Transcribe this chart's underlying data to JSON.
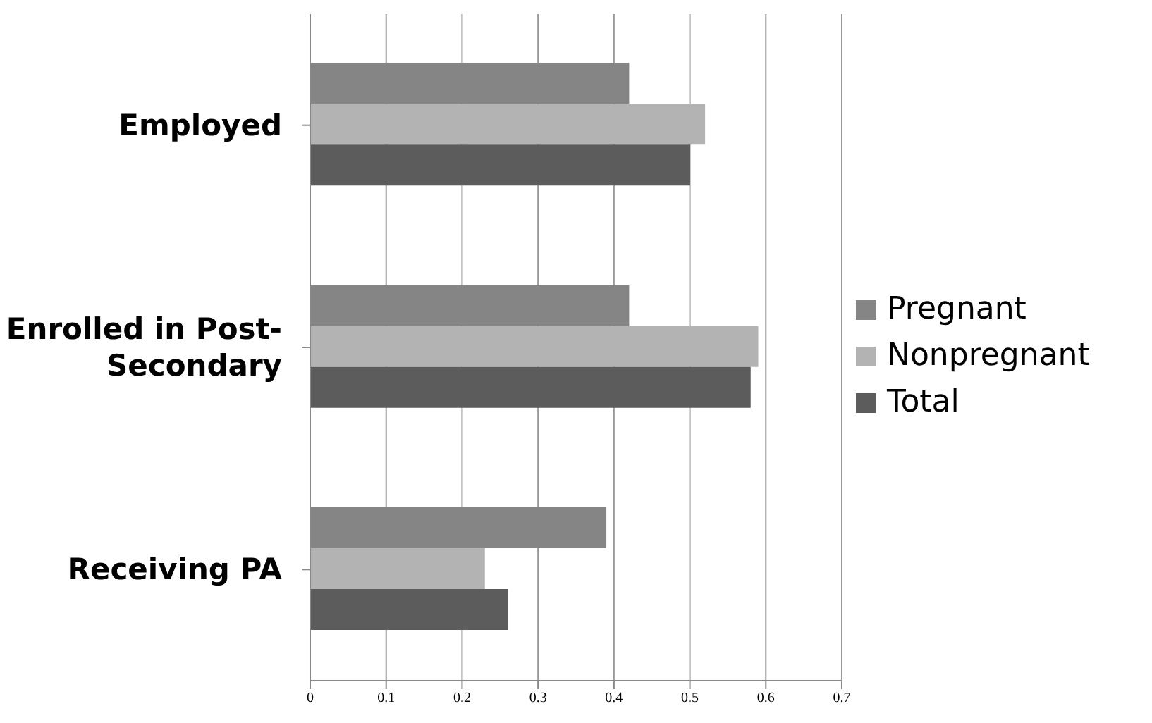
{
  "chart_data": {
    "type": "bar",
    "orientation": "horizontal",
    "categories": [
      "Employed",
      "Enrolled in Post-Secondary",
      "Receiving PA"
    ],
    "series": [
      {
        "name": "Pregnant",
        "color": "#858585",
        "values": [
          0.42,
          0.42,
          0.39
        ]
      },
      {
        "name": "Nonpregnant",
        "color": "#b3b3b3",
        "values": [
          0.52,
          0.59,
          0.23
        ]
      },
      {
        "name": "Total",
        "color": "#5c5c5c",
        "values": [
          0.5,
          0.58,
          0.26
        ]
      }
    ],
    "xlim": [
      0,
      0.7
    ],
    "xticks": [
      0,
      0.1,
      0.2,
      0.3,
      0.4,
      0.5,
      0.6,
      0.7
    ],
    "grid": "x",
    "legend": "right"
  }
}
